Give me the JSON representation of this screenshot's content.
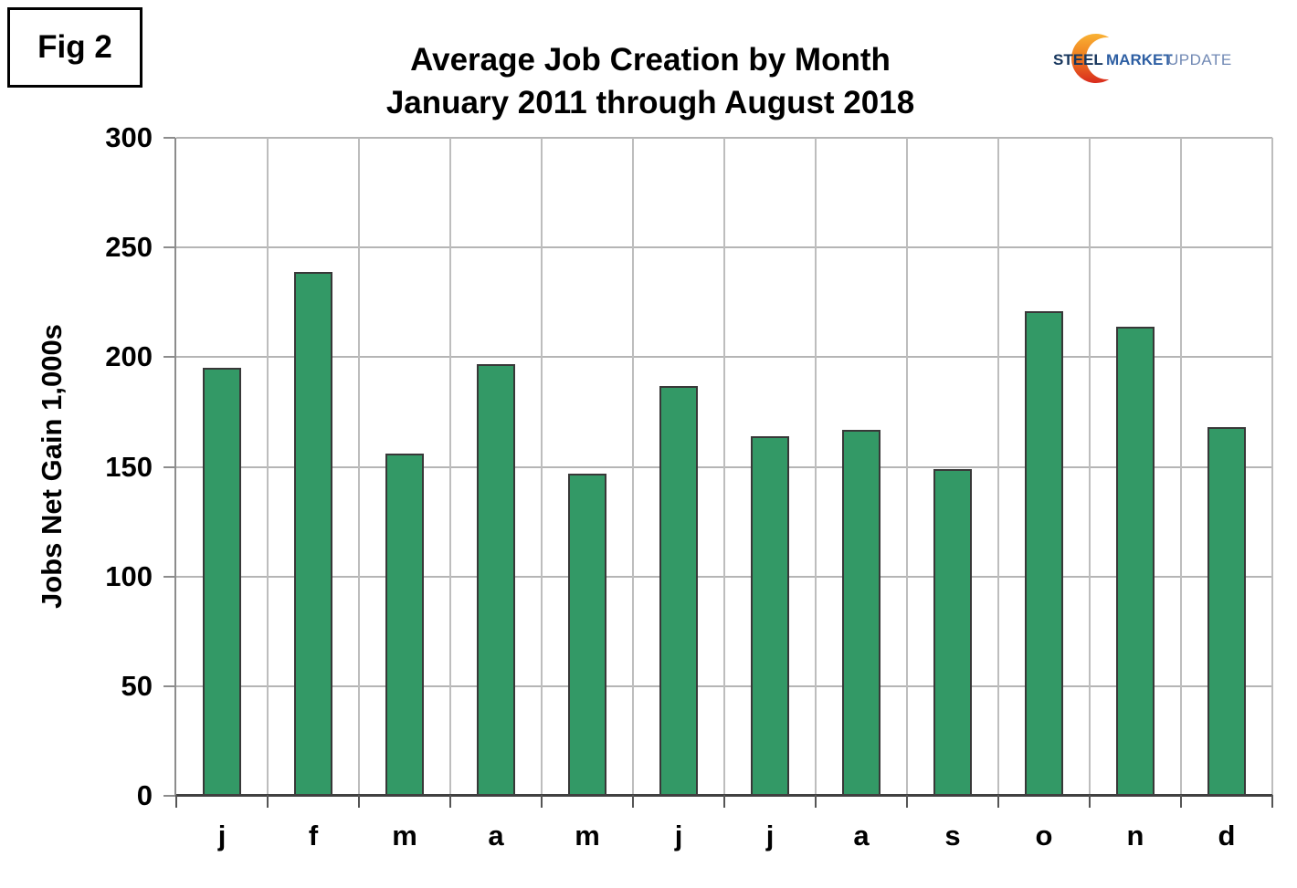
{
  "figure_label": "Fig 2",
  "title": {
    "line1": "Average Job Creation by Month",
    "line2": "January 2011 through August 2018"
  },
  "logo": {
    "steel": "STEEL",
    "market": "MARKET",
    "update": "UPDATE",
    "steel_color": "#17365D",
    "market_color": "#2E5FA3",
    "update_color": "#7189B4",
    "crescent_top_color": "#F9B234",
    "crescent_mid_color": "#F08020",
    "crescent_bottom_color": "#D92B1E"
  },
  "chart_data": {
    "type": "bar",
    "title": "Average Job Creation by Month January 2011 through August 2018",
    "categories": [
      "j",
      "f",
      "m",
      "a",
      "m",
      "j",
      "j",
      "a",
      "s",
      "o",
      "n",
      "d"
    ],
    "values": [
      195,
      239,
      156,
      197,
      147,
      187,
      164,
      167,
      149,
      221,
      214,
      168
    ],
    "xlabel": "",
    "ylabel": "Jobs Net Gain 1,000s",
    "ylim": [
      0,
      300
    ],
    "ytick_step": 50,
    "yticks": [
      "0",
      "50",
      "100",
      "150",
      "200",
      "250",
      "300"
    ],
    "grid": true,
    "legend_position": "none",
    "bar_color": "#339966",
    "bar_border_color": "#383838",
    "grid_color": "#b5b5b5",
    "axis_color": "#8c8c8c"
  }
}
